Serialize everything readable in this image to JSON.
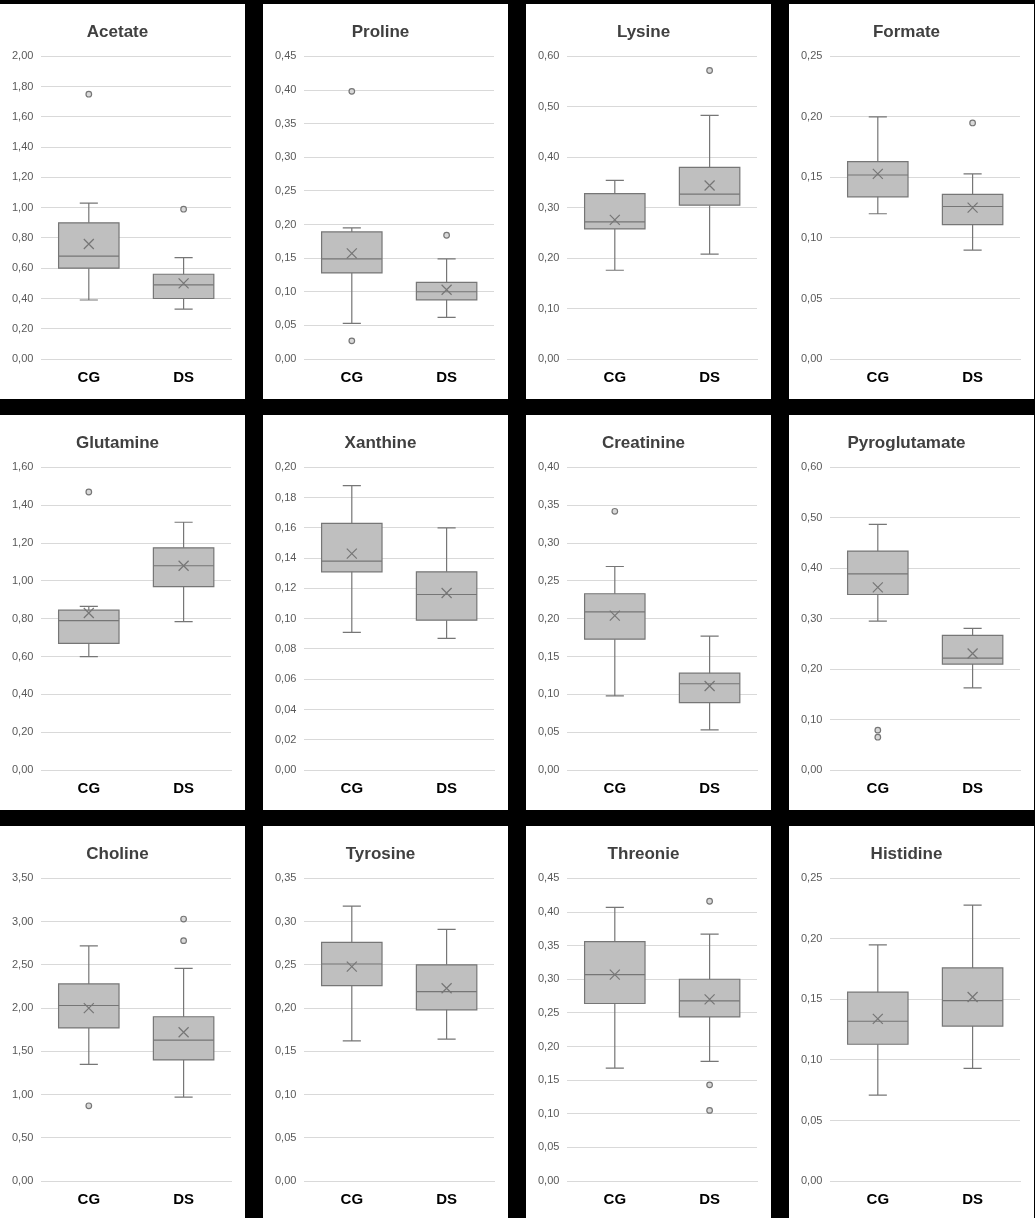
{
  "chart_data": [
    {
      "type": "box",
      "title": "Acetate",
      "categories": [
        "CG",
        "DS"
      ],
      "grid": "y",
      "ylim": [
        0,
        2
      ],
      "yticks": [
        {
          "value": 0,
          "label": "0,00"
        },
        {
          "value": 0.2,
          "label": "0,20"
        },
        {
          "value": 0.4,
          "label": "0,40"
        },
        {
          "value": 0.6,
          "label": "0,60"
        },
        {
          "value": 0.8,
          "label": "0,80"
        },
        {
          "value": 1,
          "label": "1,00"
        },
        {
          "value": 1.2,
          "label": "1,20"
        },
        {
          "value": 1.4,
          "label": "1,40"
        },
        {
          "value": 1.6,
          "label": "1,60"
        },
        {
          "value": 1.8,
          "label": "1,80"
        },
        {
          "value": 2,
          "label": "2,00"
        }
      ],
      "series": [
        {
          "color": "#bfbfbf",
          "boxes": [
            {
              "low": 0.39,
              "q1": 0.6,
              "median": 0.68,
              "q3": 0.9,
              "high": 1.03,
              "mean": 0.76,
              "outliers": [
                1.75
              ]
            },
            {
              "low": 0.33,
              "q1": 0.4,
              "median": 0.49,
              "q3": 0.56,
              "high": 0.67,
              "mean": 0.5,
              "outliers": [
                0.99
              ]
            }
          ]
        }
      ]
    },
    {
      "type": "box",
      "title": "Proline",
      "categories": [
        "CG",
        "DS"
      ],
      "grid": "y",
      "ylim": [
        0,
        0.45
      ],
      "yticks": [
        {
          "value": 0,
          "label": "0,00"
        },
        {
          "value": 0.05,
          "label": "0,05"
        },
        {
          "value": 0.1,
          "label": "0,10"
        },
        {
          "value": 0.15,
          "label": "0,15"
        },
        {
          "value": 0.2,
          "label": "0,20"
        },
        {
          "value": 0.25,
          "label": "0,25"
        },
        {
          "value": 0.3,
          "label": "0,30"
        },
        {
          "value": 0.35,
          "label": "0,35"
        },
        {
          "value": 0.4,
          "label": "0,40"
        },
        {
          "value": 0.45,
          "label": "0,45"
        }
      ],
      "series": [
        {
          "color": "#bfbfbf",
          "boxes": [
            {
              "low": 0.053,
              "q1": 0.128,
              "median": 0.149,
              "q3": 0.189,
              "high": 0.195,
              "mean": 0.157,
              "outliers": [
                0.398,
                0.027
              ]
            },
            {
              "low": 0.062,
              "q1": 0.088,
              "median": 0.1,
              "q3": 0.114,
              "high": 0.149,
              "mean": 0.103,
              "outliers": [
                0.184
              ]
            }
          ]
        }
      ]
    },
    {
      "type": "box",
      "title": "Lysine",
      "categories": [
        "CG",
        "DS"
      ],
      "grid": "y",
      "ylim": [
        0,
        0.6
      ],
      "yticks": [
        {
          "value": 0,
          "label": "0,00"
        },
        {
          "value": 0.1,
          "label": "0,10"
        },
        {
          "value": 0.2,
          "label": "0,20"
        },
        {
          "value": 0.3,
          "label": "0,30"
        },
        {
          "value": 0.4,
          "label": "0,40"
        },
        {
          "value": 0.5,
          "label": "0,50"
        },
        {
          "value": 0.6,
          "label": "0,60"
        }
      ],
      "series": [
        {
          "color": "#bfbfbf",
          "boxes": [
            {
              "low": 0.176,
              "q1": 0.258,
              "median": 0.272,
              "q3": 0.328,
              "high": 0.354,
              "mean": 0.276
            },
            {
              "low": 0.208,
              "q1": 0.305,
              "median": 0.327,
              "q3": 0.38,
              "high": 0.483,
              "mean": 0.344,
              "outliers": [
                0.572
              ]
            }
          ]
        }
      ]
    },
    {
      "type": "box",
      "title": "Formate",
      "categories": [
        "CG",
        "DS"
      ],
      "grid": "y",
      "ylim": [
        0,
        0.25
      ],
      "yticks": [
        {
          "value": 0,
          "label": "0,00"
        },
        {
          "value": 0.05,
          "label": "0,05"
        },
        {
          "value": 0.1,
          "label": "0,10"
        },
        {
          "value": 0.15,
          "label": "0,15"
        },
        {
          "value": 0.2,
          "label": "0,20"
        },
        {
          "value": 0.25,
          "label": "0,25"
        }
      ],
      "series": [
        {
          "color": "#bfbfbf",
          "boxes": [
            {
              "low": 0.12,
              "q1": 0.134,
              "median": 0.152,
              "q3": 0.163,
              "high": 0.2,
              "mean": 0.153
            },
            {
              "low": 0.09,
              "q1": 0.111,
              "median": 0.126,
              "q3": 0.136,
              "high": 0.153,
              "mean": 0.125,
              "outliers": [
                0.195
              ]
            }
          ]
        }
      ]
    },
    {
      "type": "box",
      "title": "Glutamine",
      "categories": [
        "CG",
        "DS"
      ],
      "grid": "y",
      "ylim": [
        0,
        1.6
      ],
      "yticks": [
        {
          "value": 0,
          "label": "0,00"
        },
        {
          "value": 0.2,
          "label": "0,20"
        },
        {
          "value": 0.4,
          "label": "0,40"
        },
        {
          "value": 0.6,
          "label": "0,60"
        },
        {
          "value": 0.8,
          "label": "0,80"
        },
        {
          "value": 1,
          "label": "1,00"
        },
        {
          "value": 1.2,
          "label": "1,20"
        },
        {
          "value": 1.4,
          "label": "1,40"
        },
        {
          "value": 1.6,
          "label": "1,60"
        }
      ],
      "series": [
        {
          "color": "#bfbfbf",
          "boxes": [
            {
              "low": 0.6,
              "q1": 0.67,
              "median": 0.79,
              "q3": 0.845,
              "high": 0.865,
              "mean": 0.83,
              "outliers": [
                1.47
              ]
            },
            {
              "low": 0.785,
              "q1": 0.97,
              "median": 1.08,
              "q3": 1.175,
              "high": 1.31,
              "mean": 1.08
            }
          ]
        }
      ]
    },
    {
      "type": "box",
      "title": "Xanthine",
      "categories": [
        "CG",
        "DS"
      ],
      "grid": "y",
      "ylim": [
        0,
        0.2
      ],
      "yticks": [
        {
          "value": 0,
          "label": "0,00"
        },
        {
          "value": 0.02,
          "label": "0,02"
        },
        {
          "value": 0.04,
          "label": "0,04"
        },
        {
          "value": 0.06,
          "label": "0,06"
        },
        {
          "value": 0.08,
          "label": "0,08"
        },
        {
          "value": 0.1,
          "label": "0,10"
        },
        {
          "value": 0.12,
          "label": "0,12"
        },
        {
          "value": 0.14,
          "label": "0,14"
        },
        {
          "value": 0.16,
          "label": "0,16"
        },
        {
          "value": 0.18,
          "label": "0,18"
        },
        {
          "value": 0.2,
          "label": "0,20"
        }
      ],
      "series": [
        {
          "color": "#bfbfbf",
          "boxes": [
            {
              "low": 0.091,
              "q1": 0.131,
              "median": 0.138,
              "q3": 0.163,
              "high": 0.188,
              "mean": 0.143
            },
            {
              "low": 0.087,
              "q1": 0.099,
              "median": 0.116,
              "q3": 0.131,
              "high": 0.16,
              "mean": 0.117
            }
          ]
        }
      ]
    },
    {
      "type": "box",
      "title": "Creatinine",
      "categories": [
        "CG",
        "DS"
      ],
      "grid": "y",
      "ylim": [
        0,
        0.4
      ],
      "yticks": [
        {
          "value": 0,
          "label": "0,00"
        },
        {
          "value": 0.05,
          "label": "0,05"
        },
        {
          "value": 0.1,
          "label": "0,10"
        },
        {
          "value": 0.15,
          "label": "0,15"
        },
        {
          "value": 0.2,
          "label": "0,20"
        },
        {
          "value": 0.25,
          "label": "0,25"
        },
        {
          "value": 0.3,
          "label": "0,30"
        },
        {
          "value": 0.35,
          "label": "0,35"
        },
        {
          "value": 0.4,
          "label": "0,40"
        }
      ],
      "series": [
        {
          "color": "#bfbfbf",
          "boxes": [
            {
              "low": 0.098,
              "q1": 0.173,
              "median": 0.209,
              "q3": 0.233,
              "high": 0.269,
              "mean": 0.204,
              "outliers": [
                0.342
              ]
            },
            {
              "low": 0.053,
              "q1": 0.089,
              "median": 0.114,
              "q3": 0.128,
              "high": 0.177,
              "mean": 0.111
            }
          ]
        }
      ]
    },
    {
      "type": "box",
      "title": "Pyroglutamate",
      "categories": [
        "CG",
        "DS"
      ],
      "grid": "y",
      "ylim": [
        0,
        0.6
      ],
      "yticks": [
        {
          "value": 0,
          "label": "0,00"
        },
        {
          "value": 0.1,
          "label": "0,10"
        },
        {
          "value": 0.2,
          "label": "0,20"
        },
        {
          "value": 0.3,
          "label": "0,30"
        },
        {
          "value": 0.4,
          "label": "0,40"
        },
        {
          "value": 0.5,
          "label": "0,50"
        },
        {
          "value": 0.6,
          "label": "0,60"
        }
      ],
      "series": [
        {
          "color": "#bfbfbf",
          "boxes": [
            {
              "low": 0.295,
              "q1": 0.348,
              "median": 0.389,
              "q3": 0.434,
              "high": 0.487,
              "mean": 0.362,
              "outliers": [
                0.079,
                0.065
              ]
            },
            {
              "low": 0.163,
              "q1": 0.21,
              "median": 0.222,
              "q3": 0.267,
              "high": 0.281,
              "mean": 0.231
            }
          ]
        }
      ]
    },
    {
      "type": "box",
      "title": "Choline",
      "categories": [
        "CG",
        "DS"
      ],
      "grid": "y",
      "ylim": [
        0,
        3.5
      ],
      "yticks": [
        {
          "value": 0,
          "label": "0,00"
        },
        {
          "value": 0.5,
          "label": "0,50"
        },
        {
          "value": 1,
          "label": "1,00"
        },
        {
          "value": 1.5,
          "label": "1,50"
        },
        {
          "value": 2,
          "label": "2,00"
        },
        {
          "value": 2.5,
          "label": "2,50"
        },
        {
          "value": 3,
          "label": "3,00"
        },
        {
          "value": 3.5,
          "label": "3,50"
        }
      ],
      "series": [
        {
          "color": "#bfbfbf",
          "boxes": [
            {
              "low": 1.35,
              "q1": 1.77,
              "median": 2.03,
              "q3": 2.28,
              "high": 2.72,
              "mean": 2.0,
              "outliers": [
                0.87
              ]
            },
            {
              "low": 0.97,
              "q1": 1.4,
              "median": 1.63,
              "q3": 1.9,
              "high": 2.46,
              "mean": 1.72,
              "outliers": [
                3.03,
                2.78
              ]
            }
          ]
        }
      ]
    },
    {
      "type": "box",
      "title": "Tyrosine",
      "categories": [
        "CG",
        "DS"
      ],
      "grid": "y",
      "ylim": [
        0,
        0.35
      ],
      "yticks": [
        {
          "value": 0,
          "label": "0,00"
        },
        {
          "value": 0.05,
          "label": "0,05"
        },
        {
          "value": 0.1,
          "label": "0,10"
        },
        {
          "value": 0.15,
          "label": "0,15"
        },
        {
          "value": 0.2,
          "label": "0,20"
        },
        {
          "value": 0.25,
          "label": "0,25"
        },
        {
          "value": 0.3,
          "label": "0,30"
        },
        {
          "value": 0.35,
          "label": "0,35"
        }
      ],
      "series": [
        {
          "color": "#bfbfbf",
          "boxes": [
            {
              "low": 0.162,
              "q1": 0.226,
              "median": 0.251,
              "q3": 0.276,
              "high": 0.318,
              "mean": 0.248
            },
            {
              "low": 0.164,
              "q1": 0.198,
              "median": 0.219,
              "q3": 0.25,
              "high": 0.291,
              "mean": 0.223
            }
          ]
        }
      ]
    },
    {
      "type": "box",
      "title": "Threonie",
      "categories": [
        "CG",
        "DS"
      ],
      "grid": "y",
      "ylim": [
        0,
        0.45
      ],
      "yticks": [
        {
          "value": 0,
          "label": "0,00"
        },
        {
          "value": 0.05,
          "label": "0,05"
        },
        {
          "value": 0.1,
          "label": "0,10"
        },
        {
          "value": 0.15,
          "label": "0,15"
        },
        {
          "value": 0.2,
          "label": "0,20"
        },
        {
          "value": 0.25,
          "label": "0,25"
        },
        {
          "value": 0.3,
          "label": "0,30"
        },
        {
          "value": 0.35,
          "label": "0,35"
        },
        {
          "value": 0.4,
          "label": "0,40"
        },
        {
          "value": 0.45,
          "label": "0,45"
        }
      ],
      "series": [
        {
          "color": "#bfbfbf",
          "boxes": [
            {
              "low": 0.168,
              "q1": 0.264,
              "median": 0.307,
              "q3": 0.356,
              "high": 0.407,
              "mean": 0.307
            },
            {
              "low": 0.178,
              "q1": 0.244,
              "median": 0.268,
              "q3": 0.3,
              "high": 0.367,
              "mean": 0.27,
              "outliers": [
                0.416,
                0.143,
                0.105
              ]
            }
          ]
        }
      ]
    },
    {
      "type": "box",
      "title": "Histidine",
      "categories": [
        "CG",
        "DS"
      ],
      "grid": "y",
      "ylim": [
        0,
        0.25
      ],
      "yticks": [
        {
          "value": 0,
          "label": "0,00"
        },
        {
          "value": 0.05,
          "label": "0,05"
        },
        {
          "value": 0.1,
          "label": "0,10"
        },
        {
          "value": 0.15,
          "label": "0,15"
        },
        {
          "value": 0.2,
          "label": "0,20"
        },
        {
          "value": 0.25,
          "label": "0,25"
        }
      ],
      "series": [
        {
          "color": "#bfbfbf",
          "boxes": [
            {
              "low": 0.071,
              "q1": 0.113,
              "median": 0.132,
              "q3": 0.156,
              "high": 0.195,
              "mean": 0.134
            },
            {
              "low": 0.093,
              "q1": 0.128,
              "median": 0.149,
              "q3": 0.176,
              "high": 0.228,
              "mean": 0.152
            }
          ]
        }
      ]
    }
  ]
}
